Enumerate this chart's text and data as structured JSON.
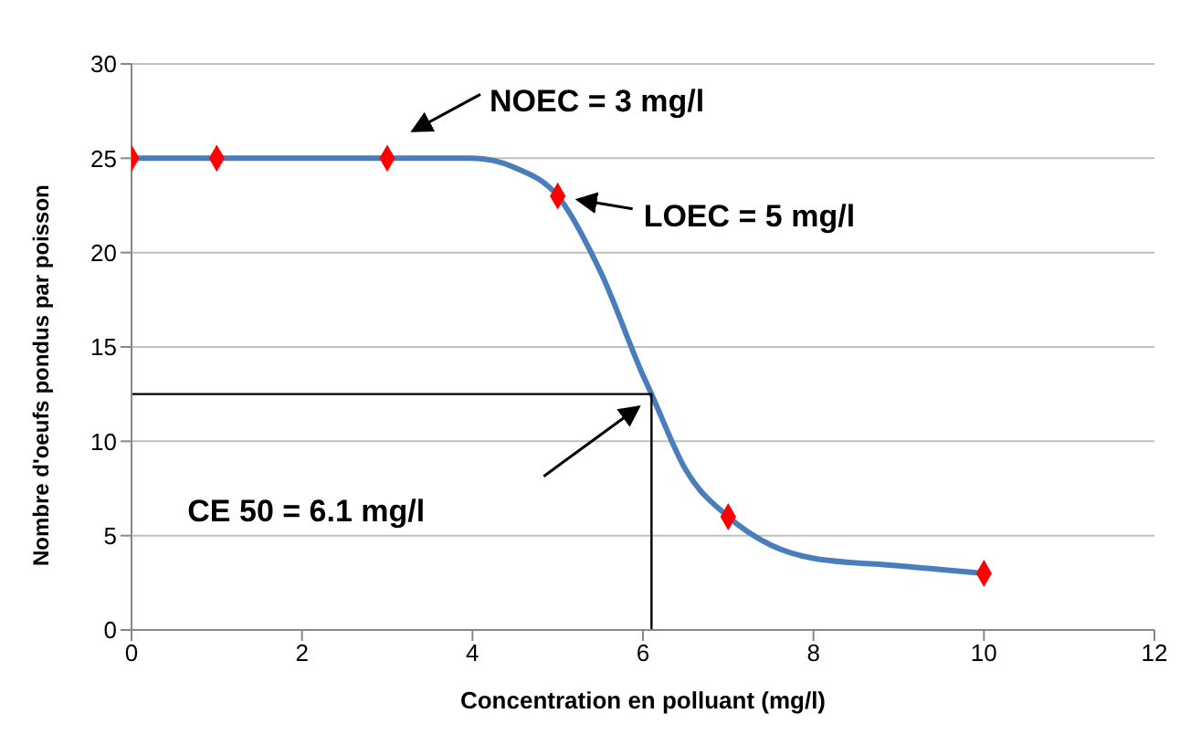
{
  "chart_data": {
    "type": "scatter",
    "xlabel": "Concentration en polluant (mg/l)",
    "ylabel": "Nombre d'oeufs pondus par poisson",
    "xlim": [
      0,
      12
    ],
    "xticks": [
      0,
      2,
      4,
      6,
      8,
      10,
      12
    ],
    "ylim": [
      0,
      30
    ],
    "yticks": [
      0,
      5,
      10,
      15,
      20,
      25,
      30
    ],
    "grid": "y",
    "series": [
      {
        "type": "line",
        "color": "#4a7ebb",
        "marker": "none",
        "x": [
          0,
          1,
          2,
          3,
          4,
          4.5,
          5,
          5.5,
          6,
          6.1,
          6.5,
          7,
          7.5,
          8,
          9,
          10
        ],
        "values": [
          25,
          25,
          25,
          25,
          25,
          24.5,
          23,
          19,
          13.5,
          12.5,
          8.5,
          6,
          4.5,
          3.8,
          3.4,
          3
        ]
      },
      {
        "type": "line",
        "color": "#000000",
        "marker": "none",
        "x": [
          0,
          6.1,
          6.1
        ],
        "values": [
          12.5,
          12.5,
          0
        ]
      },
      {
        "color": "#ff0000",
        "marker": "diamond",
        "x": [
          0,
          1,
          3,
          5,
          7,
          10
        ],
        "values": [
          25,
          25,
          25,
          23,
          6,
          3
        ]
      }
    ],
    "annotations": [
      "NOEC = 3 mg/l",
      "LOEC = 5 mg/l",
      "CE 50 = 6.1 mg/l"
    ]
  }
}
